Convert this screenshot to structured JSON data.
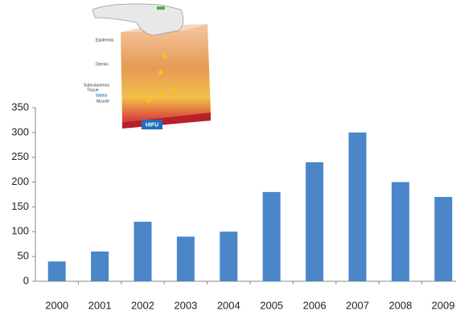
{
  "chart_data": {
    "type": "bar",
    "categories": [
      "2000",
      "2001",
      "2002",
      "2003",
      "2004",
      "2005",
      "2006",
      "2007",
      "2008",
      "2009"
    ],
    "values": [
      40,
      60,
      120,
      90,
      100,
      180,
      240,
      300,
      200,
      170
    ],
    "color": "#4a86c8",
    "ylim": [
      0,
      350
    ],
    "yticks": [
      0,
      50,
      100,
      150,
      200,
      250,
      300,
      350
    ],
    "grid": false
  },
  "illustration": {
    "labels": [
      "Epidermis",
      "Dermis",
      "Subcutaneous",
      "Tissue",
      "SMAS",
      "Muscle"
    ],
    "badge": "HIFU"
  }
}
